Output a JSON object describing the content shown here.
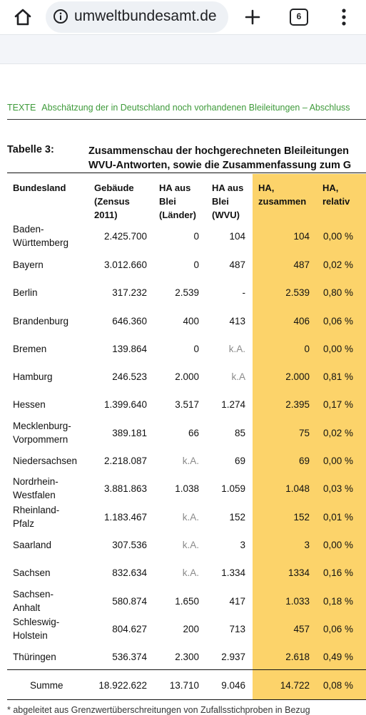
{
  "browser": {
    "url": "umweltbundesamt.de",
    "tab_count": "6"
  },
  "document": {
    "header_prefix": "TEXTE",
    "header_title": "Abschätzung der in Deutschland noch vorhandenen Bleileitungen – Abschluss",
    "table_label": "Tabelle 3:",
    "caption_line1": "Zusammenschau der hochgerechneten Bleileitungen",
    "caption_line2": "WVU-Antworten, sowie die Zusammenfassung zum G",
    "footnote": "* abgeleitet aus Grenzwertüberschreitungen von Zufallsstichproben in Bezug"
  },
  "table": {
    "headers": [
      "Bundesland",
      "Gebäude\n(Zensus\n2011)",
      "HA aus\nBlei\n(Länder)",
      "HA aus\nBlei\n(WVU)",
      "HA,\nzusammen",
      "HA,\nrelativ"
    ],
    "rows": [
      [
        "Baden-\nWürttemberg",
        "2.425.700",
        "0",
        "104",
        "104",
        "0,00 %"
      ],
      [
        "Bayern",
        "3.012.660",
        "0",
        "487",
        "487",
        "0,02 %"
      ],
      [
        "Berlin",
        "317.232",
        "2.539",
        "-",
        "2.539",
        "0,80 %"
      ],
      [
        "Brandenburg",
        "646.360",
        "400",
        "413",
        "406",
        "0,06 %"
      ],
      [
        "Bremen",
        "139.864",
        "0",
        "k.A.",
        "0",
        "0,00 %"
      ],
      [
        "Hamburg",
        "246.523",
        "2.000",
        "k.A",
        "2.000",
        "0,81 %"
      ],
      [
        "Hessen",
        "1.399.640",
        "3.517",
        "1.274",
        "2.395",
        "0,17 %"
      ],
      [
        "Mecklenburg-\nVorpommern",
        "389.181",
        "66",
        "85",
        "75",
        "0,02 %"
      ],
      [
        "Niedersachsen",
        "2.218.087",
        "k.A.",
        "69",
        "69",
        "0,00 %"
      ],
      [
        "Nordrhein-\nWestfalen",
        "3.881.863",
        "1.038",
        "1.059",
        "1.048",
        "0,03 %"
      ],
      [
        "Rheinland-\nPfalz",
        "1.183.467",
        "k.A.",
        "152",
        "152",
        "0,01 %"
      ],
      [
        "Saarland",
        "307.536",
        "k.A.",
        "3",
        "3",
        "0,00 %"
      ],
      [
        "Sachsen",
        "832.634",
        "k.A.",
        "1.334",
        "1334",
        "0,16 %"
      ],
      [
        "Sachsen-\nAnhalt",
        "580.874",
        "1.650",
        "417",
        "1.033",
        "0,18 %"
      ],
      [
        "Schleswig-\nHolstein",
        "804.627",
        "200",
        "713",
        "457",
        "0,06 %"
      ],
      [
        "Thüringen",
        "536.374",
        "2.300",
        "2.937",
        "2.618",
        "0,49 %"
      ]
    ],
    "sum_row": [
      "Summe",
      "18.922.622",
      "13.710",
      "9.046",
      "14.722",
      "0,08 %"
    ]
  },
  "colors": {
    "highlight": "#fcd36a",
    "header_green": "#3e9a3a"
  }
}
